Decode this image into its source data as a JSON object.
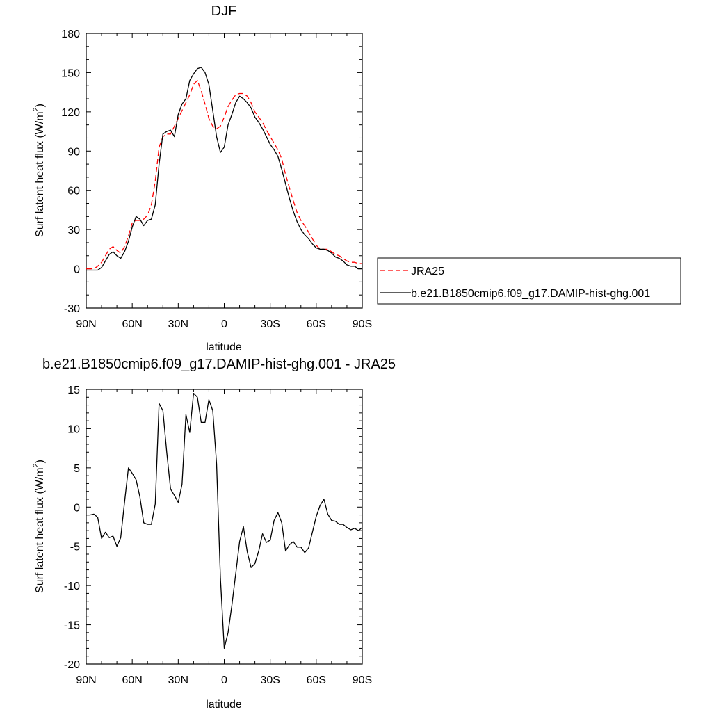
{
  "chart_data": [
    {
      "type": "line",
      "title": "DJF",
      "xlabel": "latitude",
      "ylabel": "Surf latent heat flux (W/m",
      "ylabel_sup": "2",
      "ylabel_close": ")",
      "xlim": [
        90,
        -90
      ],
      "ylim": [
        -30,
        180
      ],
      "x_ticks": [
        90,
        60,
        30,
        0,
        -30,
        -60,
        -90
      ],
      "x_tick_labels": [
        "90N",
        "60N",
        "30N",
        "0",
        "30S",
        "60S",
        "90S"
      ],
      "y_ticks": [
        -30,
        0,
        30,
        60,
        90,
        120,
        150,
        180
      ],
      "y_tick_labels": [
        "-30",
        "0",
        "30",
        "60",
        "90",
        "120",
        "150",
        "180"
      ],
      "legend_position": "right",
      "x": [
        90,
        87.5,
        85,
        82.5,
        80,
        77.5,
        75,
        72.5,
        70,
        67.5,
        65,
        62.5,
        60,
        57.5,
        55,
        52.5,
        50,
        47.5,
        45,
        42.5,
        40,
        37.5,
        35,
        32.5,
        30,
        27.5,
        25,
        22.5,
        20,
        17.5,
        15,
        12.5,
        10,
        7.5,
        5,
        2.5,
        0,
        -2.5,
        -5,
        -7.5,
        -10,
        -12.5,
        -15,
        -17.5,
        -20,
        -22.5,
        -25,
        -27.5,
        -30,
        -32.5,
        -35,
        -37.5,
        -40,
        -42.5,
        -45,
        -47.5,
        -50,
        -52.5,
        -55,
        -57.5,
        -60,
        -62.5,
        -65,
        -67.5,
        -70,
        -72.5,
        -75,
        -77.5,
        -80,
        -82.5,
        -85,
        -87.5,
        -90
      ],
      "series": [
        {
          "name": "JRA25",
          "color": "#ff0000",
          "dash": "dashed",
          "values": [
            0,
            0,
            0,
            2,
            5,
            10,
            15,
            17,
            14,
            12,
            17,
            25,
            35,
            37,
            37,
            38,
            41,
            49,
            67,
            93,
            101,
            103,
            103,
            109,
            115,
            121,
            127,
            133,
            141,
            144,
            136,
            126,
            115,
            109,
            107,
            109,
            116,
            124,
            129,
            133,
            134,
            134,
            132,
            127,
            120,
            116,
            112,
            106,
            101,
            96,
            91,
            84,
            72,
            62,
            52,
            43,
            37,
            33,
            28,
            23,
            18,
            15,
            15,
            15,
            13,
            11,
            10,
            8,
            6,
            5,
            5,
            4,
            4
          ]
        },
        {
          "name": "b.e21.B1850cmip6.f09_g17.DAMIP-hist-ghg.001",
          "color": "#000000",
          "dash": "solid",
          "values": [
            -1,
            -1,
            -1,
            -1,
            1,
            6,
            11,
            13,
            10,
            8,
            13,
            21,
            32,
            40,
            38,
            33,
            37,
            38,
            49,
            80,
            103,
            105,
            106,
            101,
            118,
            126,
            130,
            144,
            149,
            153,
            154,
            150,
            141,
            121,
            101,
            89,
            93,
            110,
            118,
            127,
            132,
            130,
            127,
            123,
            116,
            112,
            107,
            101,
            95,
            91,
            86,
            76,
            65,
            54,
            44,
            36,
            30,
            26,
            23,
            19,
            16,
            15,
            15,
            14,
            12,
            9,
            8,
            6,
            3,
            2,
            2,
            0,
            0
          ]
        }
      ]
    },
    {
      "type": "line",
      "title": "b.e21.B1850cmip6.f09_g17.DAMIP-hist-ghg.001 - JRA25",
      "xlabel": "latitude",
      "ylabel": "Surf latent heat flux (W/m",
      "ylabel_sup": "2",
      "ylabel_close": ")",
      "xlim": [
        90,
        -90
      ],
      "ylim": [
        -20,
        15
      ],
      "x_ticks": [
        90,
        60,
        30,
        0,
        -30,
        -60,
        -90
      ],
      "x_tick_labels": [
        "90N",
        "60N",
        "30N",
        "0",
        "30S",
        "60S",
        "90S"
      ],
      "y_ticks": [
        -20,
        -15,
        -10,
        -5,
        0,
        5,
        10,
        15
      ],
      "y_tick_labels": [
        "-20",
        "-15",
        "-10",
        "-5",
        "0",
        "5",
        "10",
        "15"
      ],
      "x": [
        90,
        87.5,
        85,
        82.5,
        80,
        77.5,
        75,
        72.5,
        70,
        67.5,
        65,
        62.5,
        60,
        57.5,
        55,
        52.5,
        50,
        47.5,
        45,
        42.5,
        40,
        37.5,
        35,
        32.5,
        30,
        27.5,
        25,
        22.5,
        20,
        17.5,
        15,
        12.5,
        10,
        7.5,
        5,
        2.5,
        0,
        -2.5,
        -5,
        -7.5,
        -10,
        -12.5,
        -15,
        -17.5,
        -20,
        -22.5,
        -25,
        -27.5,
        -30,
        -32.5,
        -35,
        -37.5,
        -40,
        -42.5,
        -45,
        -47.5,
        -50,
        -52.5,
        -55,
        -57.5,
        -60,
        -62.5,
        -65,
        -67.5,
        -70,
        -72.5,
        -75,
        -77.5,
        -80,
        -82.5,
        -85,
        -87.5,
        -90
      ],
      "series": [
        {
          "color": "#000000",
          "dash": "solid",
          "values": [
            -1,
            -1,
            -0.9,
            -1.3,
            -4,
            -3.2,
            -3.9,
            -3.7,
            -5,
            -3.9,
            0.6,
            5,
            4.3,
            3.5,
            1.3,
            -2,
            -2.2,
            -2.2,
            0.4,
            13.2,
            12.3,
            7,
            2.3,
            1.5,
            0.6,
            2.9,
            11.8,
            9.5,
            14.5,
            14,
            10.8,
            10.8,
            13.7,
            12.3,
            5.5,
            -9,
            -18,
            -16,
            -12.5,
            -8.5,
            -4.4,
            -2.5,
            -5.7,
            -7.7,
            -7.2,
            -5.6,
            -3.4,
            -4.5,
            -4.2,
            -1.7,
            -0.7,
            -2,
            -5.6,
            -4.8,
            -4.4,
            -5.1,
            -5.1,
            -5.8,
            -5.2,
            -3.2,
            -1.2,
            0.2,
            1,
            -0.9,
            -1.7,
            -1.8,
            -2.2,
            -2.2,
            -2.6,
            -2.9,
            -2.7,
            -3,
            -2.6
          ]
        }
      ]
    }
  ]
}
